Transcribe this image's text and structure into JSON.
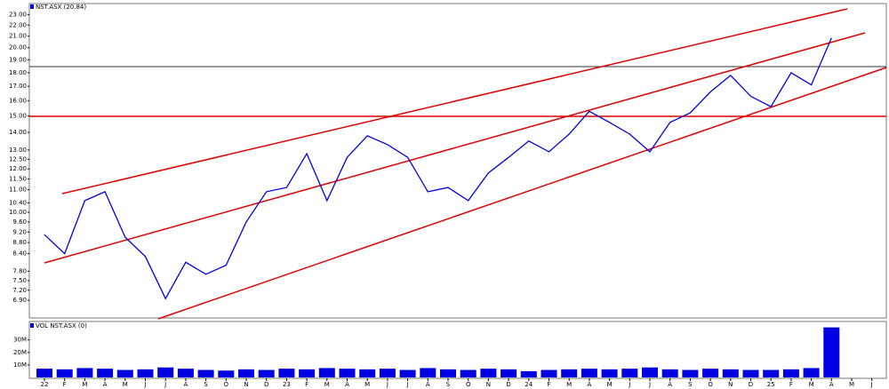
{
  "chart_data": [
    {
      "type": "line",
      "title": "NST.ASX (20.84)",
      "log_scale": true,
      "categories": [
        "22",
        "F",
        "M",
        "A",
        "M",
        "J",
        "J",
        "A",
        "S",
        "O",
        "N",
        "D",
        "23",
        "F",
        "M",
        "A",
        "M",
        "J",
        "J",
        "A",
        "S",
        "O",
        "N",
        "D",
        "24",
        "F",
        "M",
        "A",
        "M",
        "J",
        "J",
        "A",
        "S",
        "O",
        "N",
        "D",
        "25",
        "F",
        "M",
        "A",
        "M",
        "J"
      ],
      "series": [
        {
          "name": "NST.ASX",
          "color": "#0000e0",
          "values": [
            9.1,
            8.4,
            10.5,
            10.9,
            9.0,
            8.3,
            6.95,
            8.1,
            7.7,
            8.0,
            9.6,
            10.9,
            11.1,
            12.8,
            10.5,
            12.6,
            13.8,
            13.3,
            12.6,
            10.9,
            11.1,
            10.5,
            11.8,
            12.6,
            13.5,
            12.9,
            13.9,
            15.3,
            14.6,
            13.9,
            12.9,
            14.6,
            15.2,
            16.6,
            17.8,
            16.3,
            15.6,
            18.0,
            17.1,
            20.84,
            null,
            null
          ]
        }
      ],
      "ylim": [
        6.43,
        24.0
      ],
      "yticks": [
        {
          "value": 23,
          "label": "23.00"
        },
        {
          "value": 22,
          "label": "22.00"
        },
        {
          "value": 21,
          "label": "21.00"
        },
        {
          "value": 20,
          "label": "20.00"
        },
        {
          "value": 19,
          "label": "19.00"
        },
        {
          "value": 18,
          "label": "18.00"
        },
        {
          "value": 17,
          "label": "17.00"
        },
        {
          "value": 16,
          "label": "16.00"
        },
        {
          "value": 15,
          "label": "15.00"
        },
        {
          "value": 14,
          "label": "14.00"
        },
        {
          "value": 13,
          "label": "13.00"
        },
        {
          "value": 12.5,
          "label": "12.50"
        },
        {
          "value": 12,
          "label": "12.00"
        },
        {
          "value": 11.5,
          "label": "11.50"
        },
        {
          "value": 11,
          "label": "11.00"
        },
        {
          "value": 10.4,
          "label": "10.40"
        },
        {
          "value": 10,
          "label": "10.00"
        },
        {
          "value": 9.6,
          "label": "9.60"
        },
        {
          "value": 9.2,
          "label": "9.20"
        },
        {
          "value": 8.8,
          "label": "8.80"
        },
        {
          "value": 8.4,
          "label": "8.40"
        },
        {
          "value": 7.8,
          "label": "7.80"
        },
        {
          "value": 7.5,
          "label": "7.50"
        },
        {
          "value": 7.2,
          "label": "7.20"
        },
        {
          "value": 6.9,
          "label": "6.90"
        }
      ]
    },
    {
      "type": "bar",
      "title": "VOL NST.ASX (0)",
      "color": "#0000e0",
      "values": [
        7000000,
        6500000,
        7500000,
        7000000,
        6000000,
        6500000,
        8000000,
        7000000,
        6000000,
        5500000,
        6500000,
        6000000,
        7000000,
        6500000,
        7500000,
        7000000,
        6500000,
        7000000,
        6000000,
        7500000,
        6500000,
        6000000,
        7000000,
        6500000,
        5000000,
        6000000,
        6500000,
        7000000,
        6500000,
        7000000,
        8000000,
        6500000,
        6000000,
        7000000,
        6500000,
        6000000,
        6000000,
        6500000,
        7500000,
        40000000,
        null,
        null
      ],
      "ylim": [
        0,
        44000000
      ],
      "yticks": [
        {
          "value": 30000000,
          "label": "30M"
        },
        {
          "value": 20000000,
          "label": "20M"
        },
        {
          "value": 10000000,
          "label": "10M"
        }
      ]
    }
  ]
}
